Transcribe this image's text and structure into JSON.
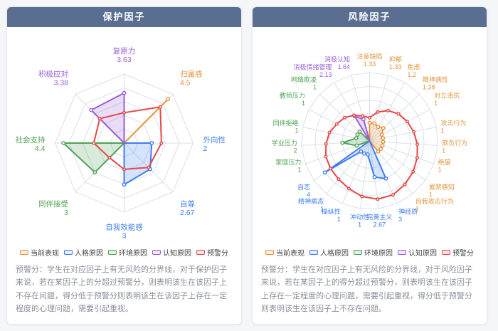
{
  "theme": {
    "page_bg": "#f5f6f8",
    "card_bg": "#ffffff",
    "card_border": "#e5e8ee",
    "header_bg": "#5a6e92",
    "header_text": "#ffffff",
    "grid_line": "#dadfe8",
    "footer_text": "#8a8f99",
    "legend_text": "#444444"
  },
  "panels": [
    {
      "title": "保护因子",
      "footer": "预警分：学生在对应因子上有无风险的分界线，对于保护因子来说，若在某因子上的分超过预警分，则表明该生在该因子上不存在问题，得分低于预警分则表明该生在该因子上存在一定程度的心理问题，需要引起重视。"
    },
    {
      "title": "风险因子",
      "footer": "预警分：学生在对应因子上有无风险的分界线，对于风险因子来说，若在某因子上的得分超过预警分，则表明该生在该因子上存在一定程度的心理问题，需要引起重视，得分低于预警分则表明该生在该因子上不存在问题。"
    }
  ],
  "chart_data": [
    {
      "type": "radar",
      "title": "保护因子",
      "max": 5,
      "rings": 5,
      "legend_position": "bottom",
      "indicators": [
        {
          "name": "复原力",
          "value": "3.63",
          "group": "认知原因"
        },
        {
          "name": "归属感",
          "value": "4.5",
          "group": "当前表现"
        },
        {
          "name": "外向性",
          "value": "2",
          "group": "人格原因"
        },
        {
          "name": "自尊",
          "value": "2.67",
          "group": "人格原因"
        },
        {
          "name": "自我效能感",
          "value": "3",
          "group": "人格原因"
        },
        {
          "name": "同伴接受",
          "value": "3",
          "group": "环境原因"
        },
        {
          "name": "社会支持",
          "value": "4.4",
          "group": "环境原因"
        },
        {
          "name": "积极应对",
          "value": "3.38",
          "group": "认知原因"
        }
      ],
      "series": [
        {
          "name": "当前表现",
          "color": "#E2953F",
          "values": [
            null,
            4.5,
            null,
            null,
            null,
            null,
            null,
            null
          ]
        },
        {
          "name": "人格原因",
          "color": "#3F7EF0",
          "values": [
            null,
            null,
            2,
            2.67,
            3,
            null,
            null,
            null
          ]
        },
        {
          "name": "环境原因",
          "color": "#4EA355",
          "values": [
            null,
            null,
            null,
            null,
            null,
            3,
            4.4,
            null
          ]
        },
        {
          "name": "认知原因",
          "color": "#9A5FD6",
          "values": [
            3.63,
            null,
            null,
            null,
            null,
            null,
            null,
            3.38
          ]
        },
        {
          "name": "预警分",
          "color": "#E64747",
          "threshold": true,
          "values": [
            2.2,
            3.7,
            2.7,
            2.5,
            1.9,
            1.5,
            2.2,
            2.5
          ]
        }
      ]
    },
    {
      "type": "radar",
      "title": "风险因子",
      "max": 5,
      "rings": 5,
      "legend_position": "bottom",
      "indicators": [
        {
          "name": "注意缺陷",
          "value": "1.33",
          "group": "当前表现"
        },
        {
          "name": "抑郁",
          "value": "1.33",
          "group": "当前表现"
        },
        {
          "name": "焦虑",
          "value": "1.2",
          "group": "当前表现"
        },
        {
          "name": "精神病性",
          "value": "1.38",
          "group": "当前表现"
        },
        {
          "name": "对立违抗",
          "value": "1",
          "group": "当前表现"
        },
        {
          "name": "攻击行为",
          "value": "1",
          "group": "当前表现"
        },
        {
          "name": "欺负行为",
          "value": "1",
          "group": "当前表现"
        },
        {
          "name": "绝望",
          "value": "1",
          "group": "当前表现"
        },
        {
          "name": "累赘感知",
          "value": "1",
          "group": "当前表现"
        },
        {
          "name": "自我攻击行为",
          "value": "1",
          "group": "当前表现"
        },
        {
          "name": "神经质",
          "value": "3",
          "group": "人格原因"
        },
        {
          "name": "完美主义",
          "value": "2.67",
          "group": "人格原因"
        },
        {
          "name": "冲动性",
          "value": "1",
          "group": "人格原因"
        },
        {
          "name": "操纵性",
          "value": "1",
          "group": "人格原因"
        },
        {
          "name": "精神病态",
          "value": "1",
          "group": "人格原因"
        },
        {
          "name": "自恋",
          "value": "4",
          "group": "人格原因"
        },
        {
          "name": "家庭压力",
          "value": "1",
          "group": "环境原因"
        },
        {
          "name": "学业压力",
          "value": "2",
          "group": "环境原因"
        },
        {
          "name": "同伴拒绝",
          "value": "1",
          "group": "环境原因"
        },
        {
          "name": "教师压力",
          "value": "1",
          "group": "环境原因"
        },
        {
          "name": "网络欺凌",
          "value": "1",
          "group": "环境原因"
        },
        {
          "name": "消极情绪管理",
          "value": "2.13",
          "group": "认知原因"
        },
        {
          "name": "消极认知",
          "value": "1.64",
          "group": "认知原因"
        }
      ],
      "series": [
        {
          "name": "当前表现",
          "color": "#E2953F",
          "values": [
            1.33,
            1.33,
            1.2,
            1.38,
            1,
            1,
            1,
            1,
            1,
            1,
            null,
            null,
            null,
            null,
            null,
            null,
            null,
            null,
            null,
            null,
            null,
            null,
            null
          ]
        },
        {
          "name": "人格原因",
          "color": "#3F7EF0",
          "values": [
            null,
            null,
            null,
            null,
            null,
            null,
            null,
            null,
            null,
            null,
            3,
            2.67,
            1,
            1,
            1,
            4,
            null,
            null,
            null,
            null,
            null,
            null,
            null
          ]
        },
        {
          "name": "环境原因",
          "color": "#4EA355",
          "values": [
            null,
            null,
            null,
            null,
            null,
            null,
            null,
            null,
            null,
            null,
            null,
            null,
            null,
            null,
            null,
            null,
            1,
            2,
            1,
            1,
            1,
            null,
            null
          ]
        },
        {
          "name": "认知原因",
          "color": "#9A5FD6",
          "values": [
            null,
            null,
            null,
            null,
            null,
            null,
            null,
            null,
            null,
            null,
            null,
            null,
            null,
            null,
            null,
            null,
            null,
            null,
            null,
            null,
            null,
            2.13,
            1.64
          ]
        },
        {
          "name": "预警分",
          "color": "#E64747",
          "threshold": true,
          "values": [
            1.7,
            2.2,
            2.6,
            2.9,
            3.1,
            3.3,
            3.5,
            3.7,
            3.9,
            4.1,
            4.3,
            4.3,
            4.1,
            3.8,
            3.6,
            3.5,
            3.4,
            3.2,
            3.0,
            2.7,
            2.5,
            2.2,
            1.9
          ]
        }
      ]
    }
  ]
}
